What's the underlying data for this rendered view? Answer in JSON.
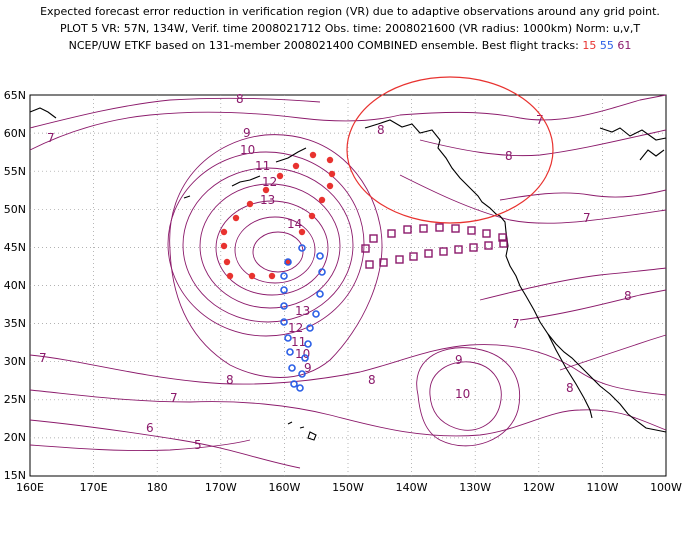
{
  "header": {
    "line1": "Expected forecast error reduction in verification region (VR) due to adaptive observations around any grid point.",
    "line2": "PLOT 5 VR: 57N, 134W, Verif. time 2008021712 Obs. time: 2008021600 (VR radius: 1000km) Norm: u,v,T",
    "line3_prefix": "NCEP/UW ETKF based on 131-member 2008021400 COMBINED ensemble.  Best flight tracks:",
    "track_ids": [
      {
        "label": "15",
        "color": "#e8322f"
      },
      {
        "label": "55",
        "color": "#2b5fe6"
      },
      {
        "label": "61",
        "color": "#8b1a6b"
      }
    ]
  },
  "map": {
    "x_ticks": [
      "160E",
      "170E",
      "180",
      "170W",
      "160W",
      "150W",
      "140W",
      "130W",
      "120W",
      "110W",
      "100W"
    ],
    "y_ticks": [
      "65N",
      "60N",
      "55N",
      "50N",
      "45N",
      "40N",
      "35N",
      "30N",
      "25N",
      "20N",
      "15N"
    ],
    "contour_labels": [
      "7",
      "8",
      "9",
      "10",
      "11",
      "12",
      "13",
      "14",
      "8",
      "7",
      "8",
      "7",
      "7",
      "7",
      "8",
      "8",
      "9",
      "10",
      "8",
      "7",
      "6",
      "5",
      "8",
      "13",
      "12",
      "11",
      "10",
      "9"
    ],
    "colors": {
      "contour": "#8b1a6b",
      "coast": "#000000",
      "vr_circle": "#e8322f",
      "track_15": "#e8322f",
      "track_55": "#2b5fe6",
      "track_61": "#8b1a6b"
    }
  }
}
